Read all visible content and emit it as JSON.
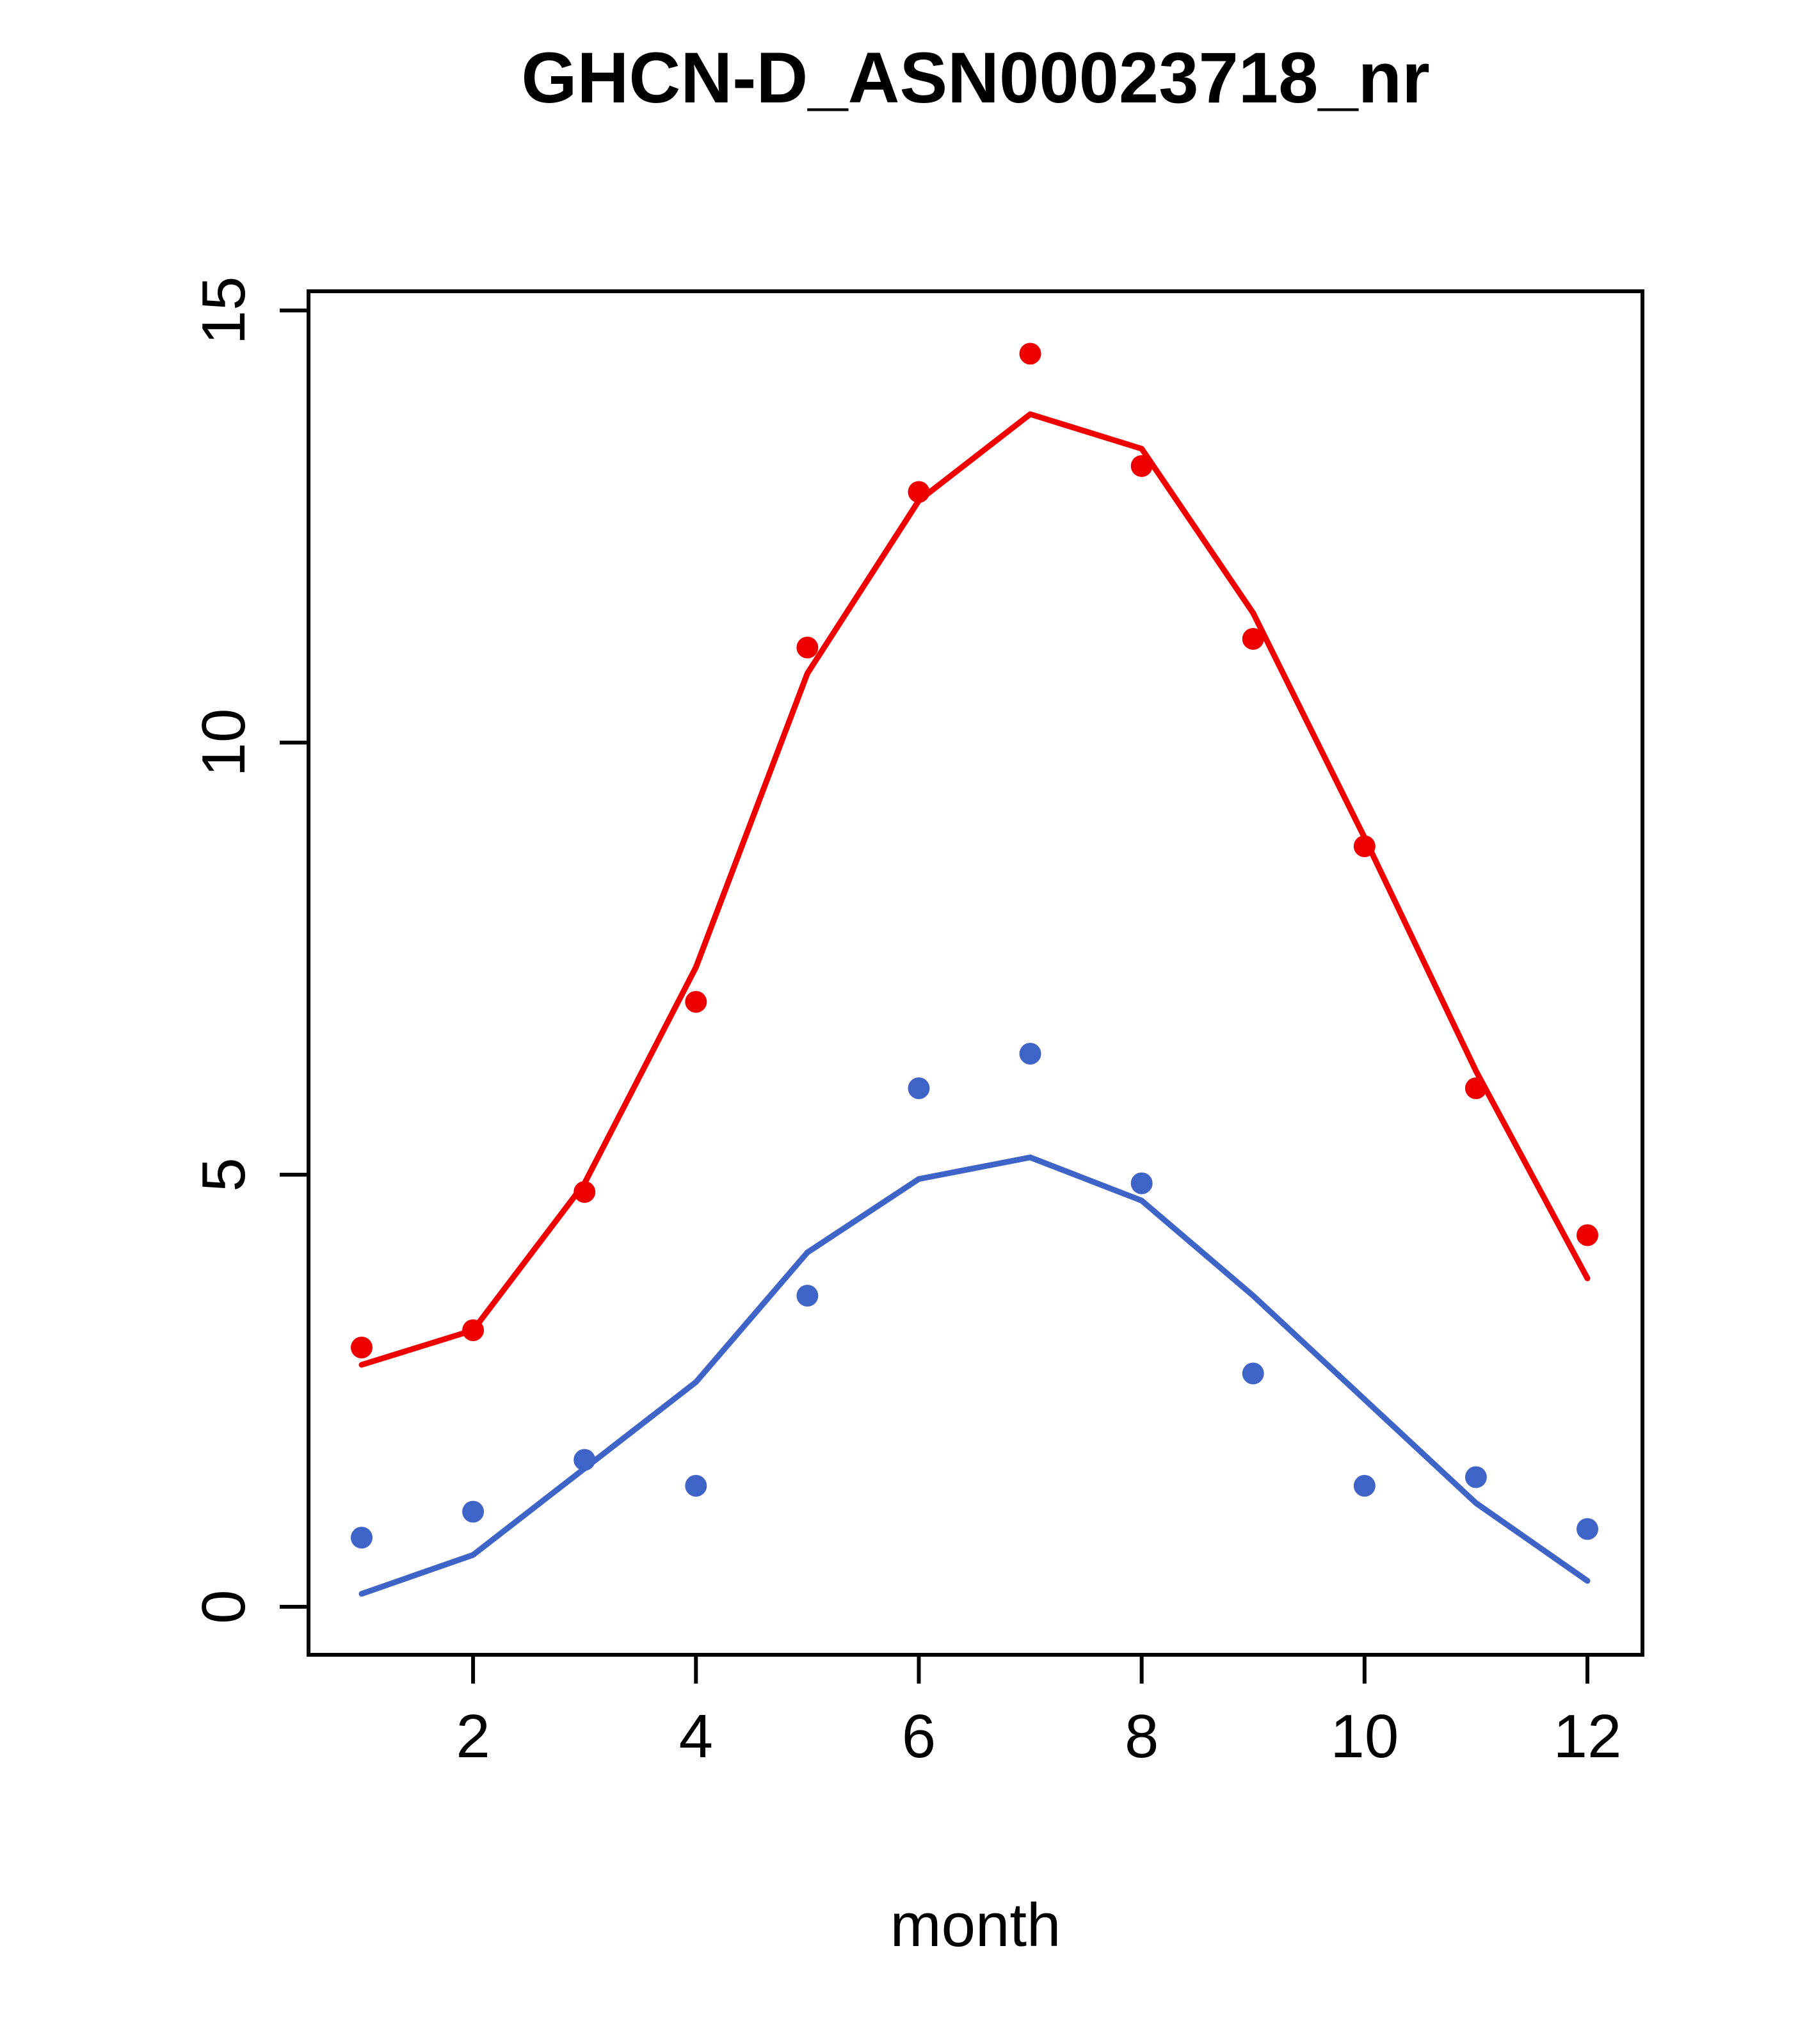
{
  "figure": {
    "background_color": "#ffffff",
    "border_color": "#000000"
  },
  "chart_data": {
    "type": "line",
    "title": "GHCN-D_ASN00023718_nr",
    "xlabel": "month",
    "ylabel": "",
    "xlim": [
      1,
      12
    ],
    "ylim": [
      0,
      15
    ],
    "xticks": [
      2,
      4,
      6,
      8,
      10,
      12
    ],
    "yticks": [
      0,
      5,
      10,
      15
    ],
    "grid": false,
    "legend": "none",
    "x": [
      1,
      2,
      3,
      4,
      5,
      6,
      7,
      8,
      9,
      10,
      11,
      12
    ],
    "series": [
      {
        "name": "red-line-fit",
        "style": "line",
        "color": "#EE0000",
        "values": [
          2.8,
          3.2,
          4.9,
          7.4,
          10.8,
          12.8,
          13.8,
          13.4,
          11.5,
          8.9,
          6.2,
          3.8
        ]
      },
      {
        "name": "blue-line-fit",
        "style": "line",
        "color": "#3E64C8",
        "values": [
          0.15,
          0.6,
          1.6,
          2.6,
          4.1,
          4.95,
          5.2,
          4.7,
          3.6,
          2.4,
          1.2,
          0.3
        ]
      },
      {
        "name": "red-points-observed",
        "style": "points",
        "color": "#EE0000",
        "values": [
          3.0,
          3.2,
          4.8,
          7.0,
          11.1,
          12.9,
          14.5,
          13.2,
          11.2,
          8.8,
          6.0,
          4.3
        ]
      },
      {
        "name": "blue-points-observed",
        "style": "points",
        "color": "#3E64C8",
        "values": [
          0.8,
          1.1,
          1.7,
          1.4,
          3.6,
          6.0,
          6.4,
          4.9,
          2.7,
          1.4,
          1.5,
          0.9
        ]
      }
    ]
  }
}
